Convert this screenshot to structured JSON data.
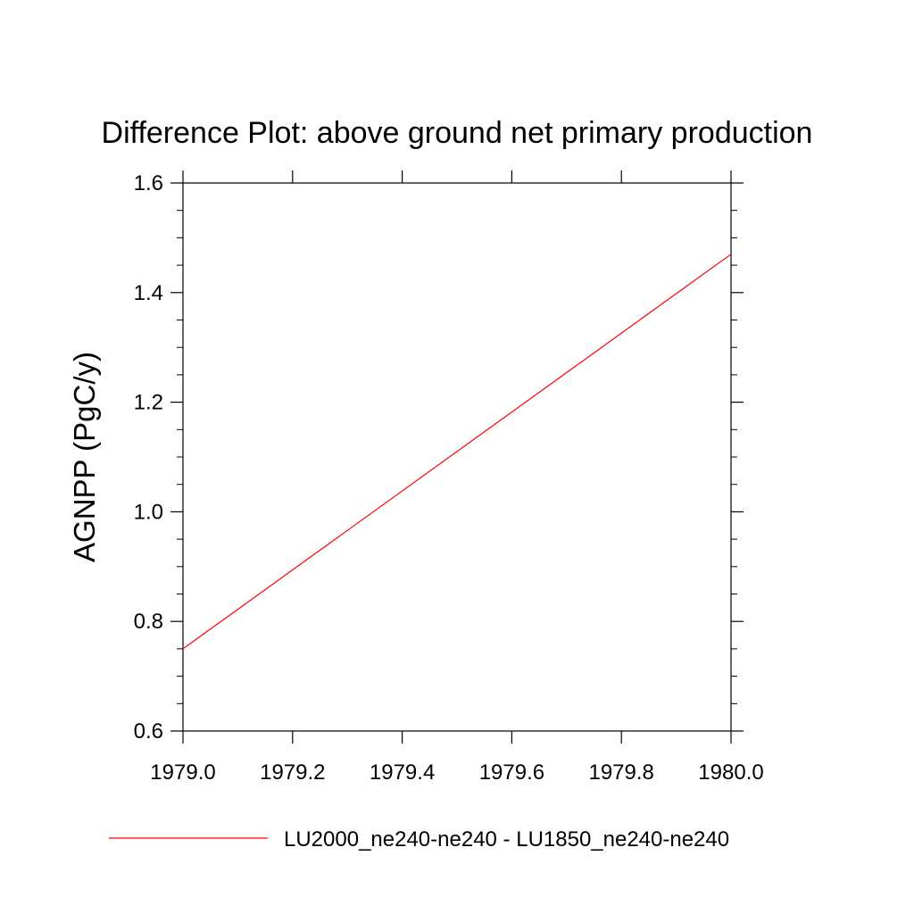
{
  "chart_data": {
    "type": "line",
    "title": "Difference Plot: above ground net primary production",
    "xlabel": "",
    "ylabel": "AGNPP  (PgC/y)",
    "xlim": [
      1979.0,
      1980.0
    ],
    "ylim": [
      0.6,
      1.6
    ],
    "x_ticks": [
      "1979.0",
      "1979.2",
      "1979.4",
      "1979.6",
      "1979.8",
      "1980.0"
    ],
    "y_ticks": [
      "0.6",
      "0.8",
      "1.0",
      "1.2",
      "1.4",
      "1.6"
    ],
    "grid": false,
    "legend_position": "bottom",
    "series": [
      {
        "name": "LU2000_ne240-ne240 - LU1850_ne240-ne240",
        "color": "#ff0000",
        "x": [
          1979.0,
          1980.0
        ],
        "y": [
          0.75,
          1.47
        ]
      }
    ]
  }
}
